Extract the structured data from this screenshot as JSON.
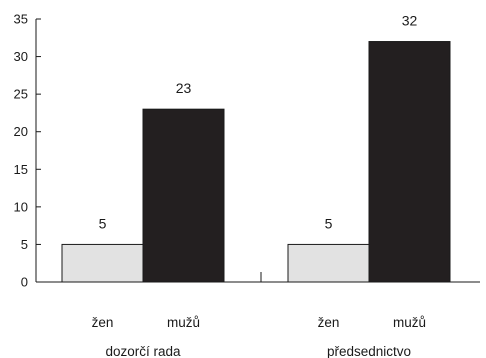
{
  "chart_data": {
    "type": "bar",
    "title": "",
    "xlabel": "",
    "ylabel": "",
    "ylim": [
      0,
      35
    ],
    "yticks": [
      0,
      5,
      10,
      15,
      20,
      25,
      30,
      35
    ],
    "grid": false,
    "legend": "none",
    "groups": [
      {
        "label": "dozorčí rada",
        "bars": [
          {
            "category": "žen",
            "value": 5,
            "color": "#e2e2e2"
          },
          {
            "category": "mužů",
            "value": 23,
            "color": "#231f20"
          }
        ]
      },
      {
        "label": "předsednictvo",
        "bars": [
          {
            "category": "žen",
            "value": 5,
            "color": "#e2e2e2"
          },
          {
            "category": "mužů",
            "value": 32,
            "color": "#231f20"
          }
        ]
      }
    ]
  }
}
